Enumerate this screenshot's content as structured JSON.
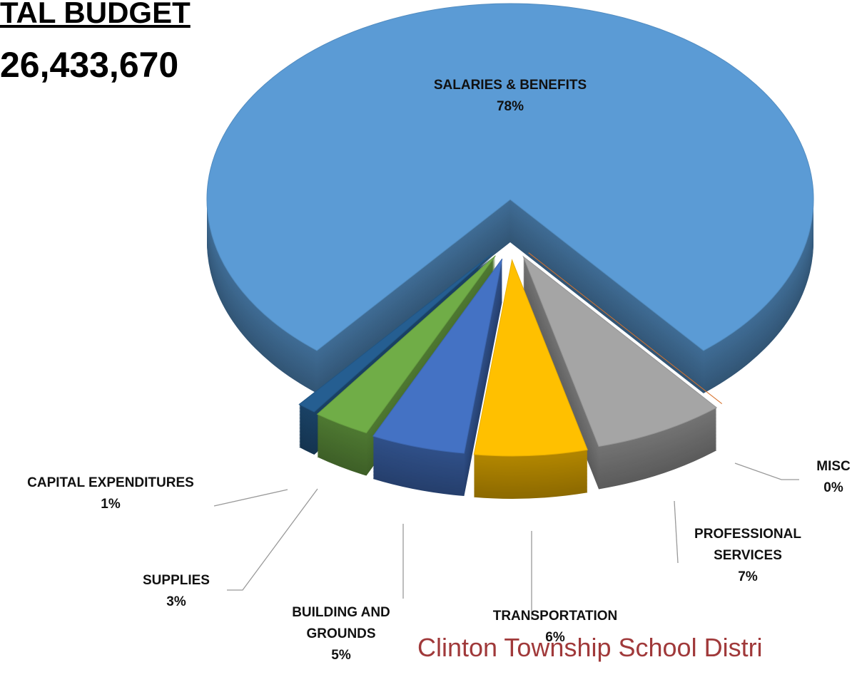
{
  "chart_data": {
    "type": "pie",
    "title": "TAL BUDGET",
    "subtitle": "26,433,670",
    "footer": "Clinton Township School Distri",
    "categories": [
      "SALARIES & BENEFITS",
      "MISC",
      "PROFESSIONAL SERVICES",
      "TRANSPORTATION",
      "BUILDING AND GROUNDS",
      "SUPPLIES",
      "CAPITAL EXPENDITURES"
    ],
    "values": [
      78,
      0,
      7,
      6,
      5,
      3,
      1
    ],
    "value_labels": [
      "78%",
      "0%",
      "7%",
      "6%",
      "5%",
      "3%",
      "1%"
    ],
    "colors": [
      "#5b9bd5",
      "#ed7d31",
      "#a5a5a5",
      "#ffc000",
      "#4472c4",
      "#70ad47",
      "#255e91"
    ]
  }
}
